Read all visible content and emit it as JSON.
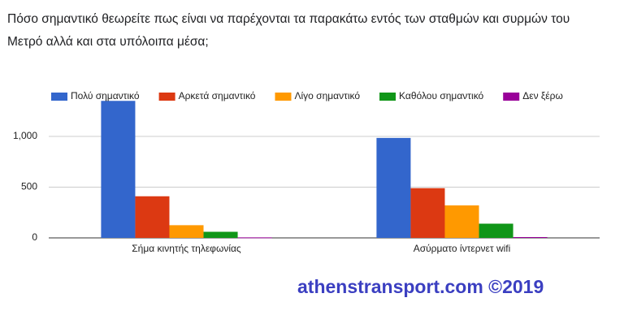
{
  "chart_data": {
    "type": "bar",
    "title": "Πόσο σημαντικό θεωρείτε πως είναι να παρέχονται τα παρακάτω εντός των σταθμών και συρμών του Μετρό αλλά και στα υπόλοιπα μέσα;",
    "categories": [
      "Σήμα κινητής τηλεφωνίας",
      "Ασύρματο ίντερνετ wifi"
    ],
    "series": [
      {
        "name": "Πολύ σημαντικό",
        "color": "#3366cc",
        "values": [
          1350,
          985
        ]
      },
      {
        "name": "Αρκετά σημαντικό",
        "color": "#dc3912",
        "values": [
          410,
          490
        ]
      },
      {
        "name": "Λίγο σημαντικό",
        "color": "#ff9900",
        "values": [
          125,
          320
        ]
      },
      {
        "name": "Καθόλου σημαντικό",
        "color": "#109618",
        "values": [
          60,
          140
        ]
      },
      {
        "name": "Δεν ξέρω",
        "color": "#990099",
        "values": [
          5,
          8
        ]
      }
    ],
    "ylim": [
      0,
      1400
    ],
    "yticks": [
      0,
      500,
      {
        "value": 1000,
        "label": "1,000"
      }
    ],
    "grid": true,
    "legend": "top"
  },
  "watermark": "athenstransport.com ©2019"
}
